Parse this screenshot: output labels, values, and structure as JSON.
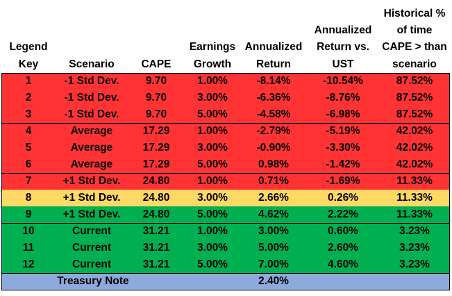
{
  "headers": [
    "Legend\nKey",
    "Scenario",
    "CAPE",
    "Earnings\nGrowth",
    "Annualized\nReturn",
    "Annualized\nReturn vs.\nUST",
    "Historical %\nof time\nCAPE > than\nscenario"
  ],
  "colors": {
    "red": "#ff3333",
    "yellow": "#ffd966",
    "green": "#00b050",
    "blue": "#8ea9db"
  },
  "rows": [
    {
      "key": "1",
      "scenario": "-1 Std Dev.",
      "cape": "9.70",
      "growth": "1.00%",
      "ret": "-8.14%",
      "vs_ust": "-10.54%",
      "hist": "87.52%",
      "color": "red"
    },
    {
      "key": "2",
      "scenario": "-1 Std Dev.",
      "cape": "9.70",
      "growth": "3.00%",
      "ret": "-6.36%",
      "vs_ust": "-8.76%",
      "hist": "87.52%",
      "color": "red"
    },
    {
      "key": "3",
      "scenario": "-1 Std Dev.",
      "cape": "9.70",
      "growth": "5.00%",
      "ret": "-4.58%",
      "vs_ust": "-6.98%",
      "hist": "87.52%",
      "color": "red"
    },
    {
      "key": "4",
      "scenario": "Average",
      "cape": "17.29",
      "growth": "1.00%",
      "ret": "-2.79%",
      "vs_ust": "-5.19%",
      "hist": "42.02%",
      "color": "red"
    },
    {
      "key": "5",
      "scenario": "Average",
      "cape": "17.29",
      "growth": "3.00%",
      "ret": "-0.90%",
      "vs_ust": "-3.30%",
      "hist": "42.02%",
      "color": "red"
    },
    {
      "key": "6",
      "scenario": "Average",
      "cape": "17.29",
      "growth": "5.00%",
      "ret": "0.98%",
      "vs_ust": "-1.42%",
      "hist": "42.02%",
      "color": "red"
    },
    {
      "key": "7",
      "scenario": "+1 Std Dev.",
      "cape": "24.80",
      "growth": "1.00%",
      "ret": "0.71%",
      "vs_ust": "-1.69%",
      "hist": "11.33%",
      "color": "red"
    },
    {
      "key": "8",
      "scenario": "+1 Std Dev.",
      "cape": "24.80",
      "growth": "3.00%",
      "ret": "2.66%",
      "vs_ust": "0.26%",
      "hist": "11.33%",
      "color": "yellow"
    },
    {
      "key": "9",
      "scenario": "+1 Std Dev.",
      "cape": "24.80",
      "growth": "5.00%",
      "ret": "4.62%",
      "vs_ust": "2.22%",
      "hist": "11.33%",
      "color": "green"
    },
    {
      "key": "10",
      "scenario": "Current",
      "cape": "31.21",
      "growth": "1.00%",
      "ret": "3.00%",
      "vs_ust": "0.60%",
      "hist": "3.23%",
      "color": "green"
    },
    {
      "key": "11",
      "scenario": "Current",
      "cape": "31.21",
      "growth": "3.00%",
      "ret": "5.00%",
      "vs_ust": "2.60%",
      "hist": "3.23%",
      "color": "green"
    },
    {
      "key": "12",
      "scenario": "Current",
      "cape": "31.21",
      "growth": "5.00%",
      "ret": "7.00%",
      "vs_ust": "4.60%",
      "hist": "3.23%",
      "color": "green"
    }
  ],
  "treasury": {
    "label": "Treasury Note",
    "ret": "2.40%",
    "color": "blue"
  }
}
